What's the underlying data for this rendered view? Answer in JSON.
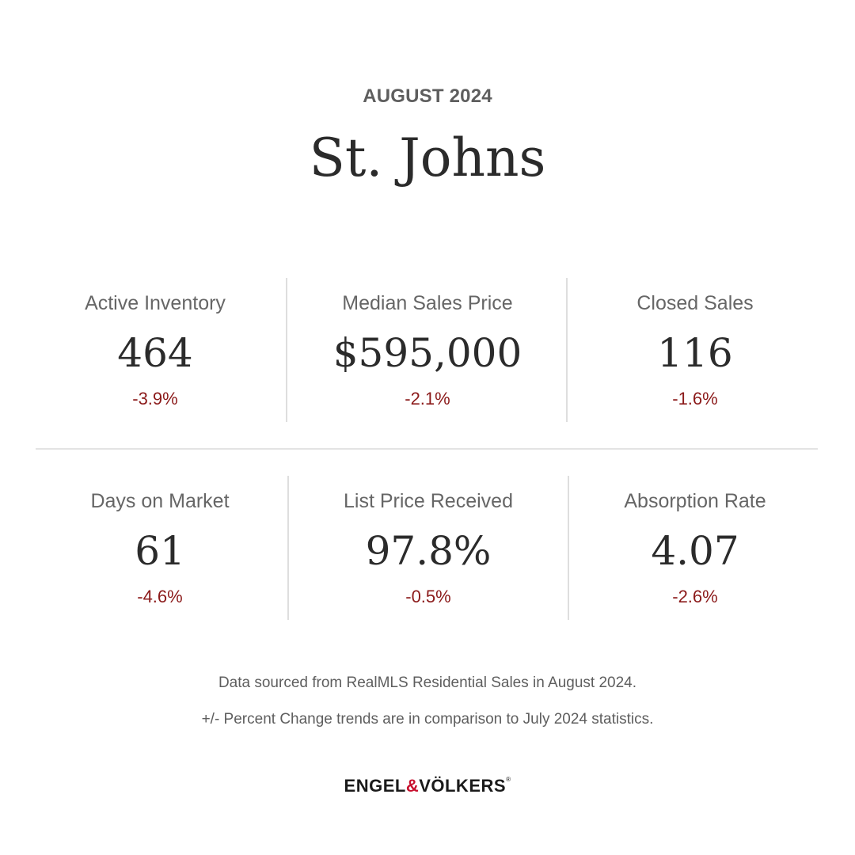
{
  "header": {
    "period": "AUGUST 2024",
    "title": "St. Johns"
  },
  "stats": [
    {
      "label": "Active Inventory",
      "value": "464",
      "change": "-3.9%"
    },
    {
      "label": "Median Sales Price",
      "value": "$595,000",
      "change": "-2.1%"
    },
    {
      "label": "Closed Sales",
      "value": "116",
      "change": "-1.6%"
    },
    {
      "label": "Days on Market",
      "value": "61",
      "change": "-4.6%"
    },
    {
      "label": "List Price Received",
      "value": "97.8%",
      "change": "-0.5%"
    },
    {
      "label": "Absorption Rate",
      "value": "4.07",
      "change": "-2.6%"
    }
  ],
  "footer": {
    "source_note": "Data sourced from RealMLS Residential Sales in August 2024.",
    "trend_note": "+/- Percent Change trends are in comparison to July 2024 statistics.",
    "brand_left": "ENGEL",
    "brand_amp": "&",
    "brand_right": "VÖLKERS",
    "brand_reg": "®"
  },
  "colors": {
    "negative_change": "#8b1a1a",
    "brand_accent": "#c8102e"
  }
}
